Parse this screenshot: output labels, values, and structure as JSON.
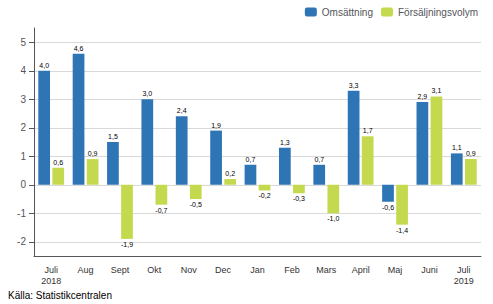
{
  "chart_data": {
    "type": "bar",
    "categories": [
      "Juli\n2018",
      "Aug",
      "Sept",
      "Okt",
      "Nov",
      "Dec",
      "Jan",
      "Feb",
      "Mars",
      "April",
      "Maj",
      "Juni",
      "Juli\n2019"
    ],
    "series": [
      {
        "name": "Omsättning",
        "color": "#2E75B6",
        "values": [
          4.0,
          4.6,
          1.5,
          3.0,
          2.4,
          1.9,
          0.7,
          1.3,
          0.7,
          3.3,
          -0.6,
          2.9,
          1.1
        ],
        "value_labels": [
          "4,0",
          "4,6",
          "1,5",
          "3,0",
          "2,4",
          "1,9",
          "0,7",
          "1,3",
          "0,7",
          "3,3",
          "-0,6",
          "2,9",
          "1,1"
        ]
      },
      {
        "name": "Försäljningsvolym",
        "color": "#C5D94E",
        "values": [
          0.6,
          0.9,
          -1.9,
          -0.7,
          -0.5,
          0.2,
          -0.2,
          -0.3,
          -1.0,
          1.7,
          -1.4,
          3.1,
          0.9
        ],
        "value_labels": [
          "0,6",
          "0,9",
          "-1,9",
          "-0,7",
          "-0,5",
          "0,2",
          "-0,2",
          "-0,3",
          "-1,0",
          "1,7",
          "-1,4",
          "3,1",
          "0,9"
        ]
      }
    ],
    "ylim": [
      -2.5,
      5.5
    ],
    "yticks": [
      -2,
      -1,
      0,
      1,
      2,
      3,
      4,
      5
    ],
    "grid": true,
    "legend": "upper right",
    "data_labels": true,
    "annotations": [
      "Källa: Statistikcentralen"
    ]
  }
}
